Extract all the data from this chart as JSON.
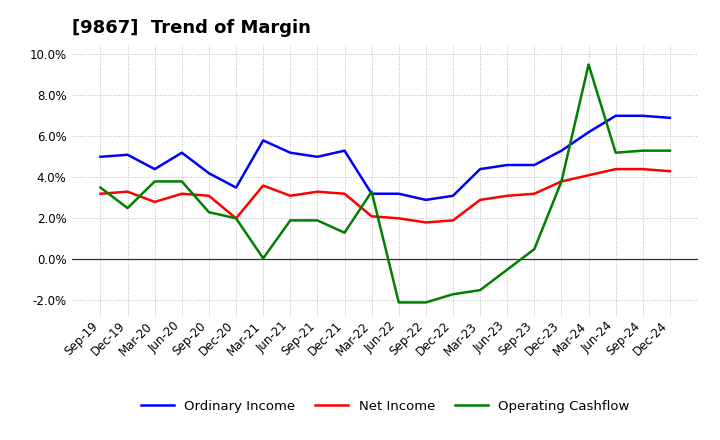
{
  "title": "[9867]  Trend of Margin",
  "x_labels": [
    "Sep-19",
    "Dec-19",
    "Mar-20",
    "Jun-20",
    "Sep-20",
    "Dec-20",
    "Mar-21",
    "Jun-21",
    "Sep-21",
    "Dec-21",
    "Mar-22",
    "Jun-22",
    "Sep-22",
    "Dec-22",
    "Mar-23",
    "Jun-23",
    "Sep-23",
    "Dec-23",
    "Mar-24",
    "Jun-24",
    "Sep-24",
    "Dec-24"
  ],
  "ordinary_income": [
    5.0,
    5.1,
    4.4,
    5.2,
    4.2,
    3.5,
    5.8,
    5.2,
    5.0,
    5.3,
    3.2,
    3.2,
    2.9,
    3.1,
    4.4,
    4.6,
    4.6,
    5.3,
    6.2,
    7.0,
    7.0,
    6.9
  ],
  "net_income": [
    3.2,
    3.3,
    2.8,
    3.2,
    3.1,
    2.0,
    3.6,
    3.1,
    3.3,
    3.2,
    2.1,
    2.0,
    1.8,
    1.9,
    2.9,
    3.1,
    3.2,
    3.8,
    4.1,
    4.4,
    4.4,
    4.3
  ],
  "operating_cashflow": [
    3.5,
    2.5,
    3.8,
    3.8,
    2.3,
    2.0,
    0.05,
    1.9,
    1.9,
    1.3,
    3.3,
    -2.1,
    -2.1,
    -1.7,
    -1.5,
    -0.5,
    0.5,
    3.8,
    9.5,
    5.2,
    5.3,
    5.3
  ],
  "ylim": [
    -2.8,
    10.5
  ],
  "yticks": [
    -2.0,
    0.0,
    2.0,
    4.0,
    6.0,
    8.0,
    10.0
  ],
  "color_ordinary": "#0000FF",
  "color_net": "#FF0000",
  "color_opcash": "#008000",
  "background_color": "#FFFFFF",
  "grid_color": "#BBBBBB",
  "title_fontsize": 13,
  "tick_fontsize": 8.5,
  "legend_fontsize": 9.5
}
